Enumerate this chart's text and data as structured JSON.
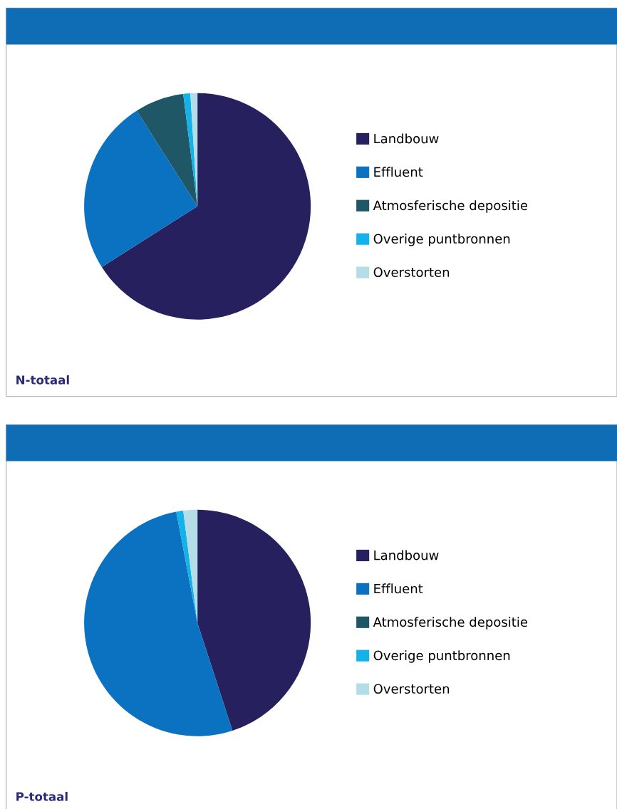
{
  "chart_data": [
    {
      "type": "pie",
      "title": "N-totaal",
      "categories": [
        "Landbouw",
        "Effluent",
        "Atmosferische depositie",
        "Overige puntbronnen",
        "Overstorten"
      ],
      "values": [
        66,
        25,
        7,
        1,
        1
      ],
      "colors": [
        "#26215e",
        "#0a72c0",
        "#1f5766",
        "#14b2e8",
        "#b5dde8"
      ],
      "legend": "right"
    },
    {
      "type": "pie",
      "title": "P-totaal",
      "categories": [
        "Landbouw",
        "Effluent",
        "Atmosferische depositie",
        "Overige puntbronnen",
        "Overstorten"
      ],
      "values": [
        45,
        52,
        0,
        1,
        2
      ],
      "colors": [
        "#26215e",
        "#0a72c0",
        "#1f5766",
        "#14b2e8",
        "#b5dde8"
      ],
      "legend": "right"
    }
  ]
}
